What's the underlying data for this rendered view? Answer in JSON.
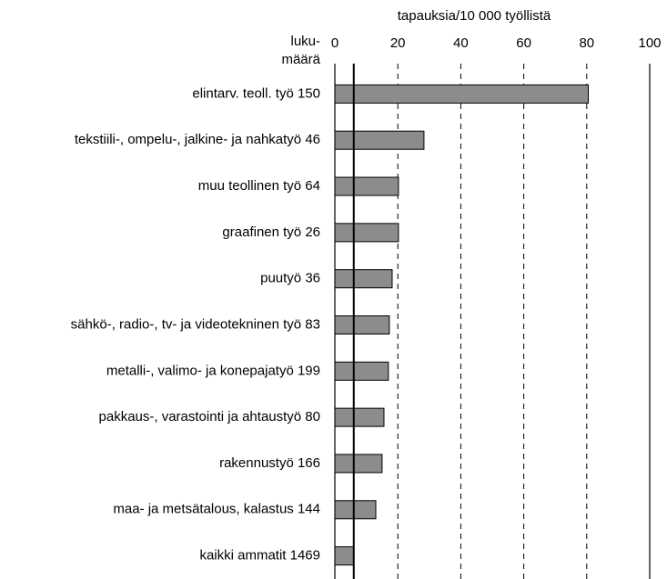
{
  "chart_data": {
    "type": "hbar",
    "x_label": "tapauksia/10 000 työllistä",
    "count_label": [
      "luku-",
      "määrä"
    ],
    "categories": [
      "elintarv. teoll. työ 150",
      "tekstiili-, ompelu-, jalkine- ja nahkatyö 46",
      "muu teollinen työ 64",
      "graafinen työ 26",
      "puutyö 36",
      "sähkö-, radio-, tv- ja videotekninen työ 83",
      "metalli-, valimo- ja konepajatyö 199",
      "pakkaus-, varastointi ja ahtaustyö 80",
      "rakennustyö 166",
      "maa- ja metsätalous, kalastus 144",
      "kaikki ammatit 1469"
    ],
    "values": [
      80.5,
      28.3,
      20.2,
      20.2,
      18.2,
      17.3,
      17,
      15.6,
      15,
      13,
      6
    ],
    "color": "#8c8c8c",
    "xlim": [
      0,
      100
    ],
    "xticks": [
      0,
      20,
      40,
      60,
      80,
      100
    ],
    "grid": true
  }
}
